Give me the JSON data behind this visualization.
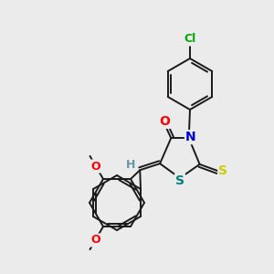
{
  "background_color": "#ebebeb",
  "bond_color": "#1a1a1a",
  "atom_colors": {
    "O": "#ff0000",
    "N": "#0000cc",
    "S_thioxo": "#cccc00",
    "S_ring": "#008080",
    "Cl": "#00aa00",
    "C": "#1a1a1a",
    "H": "#6699aa"
  },
  "figsize": [
    3.0,
    3.0
  ],
  "dpi": 100
}
